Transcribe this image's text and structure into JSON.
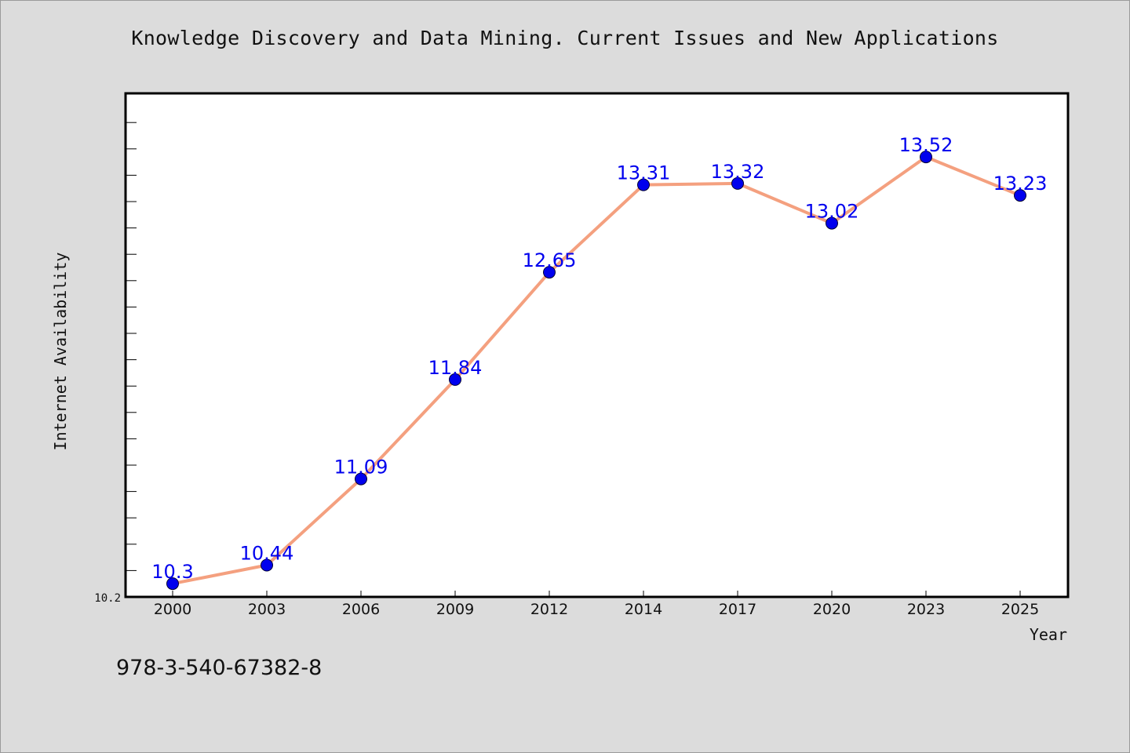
{
  "page": {
    "isbn": "978-3-540-67382-8"
  },
  "chart_data": {
    "type": "line",
    "title": "Knowledge Discovery and Data Mining. Current Issues and New Applications",
    "xlabel": "Year",
    "ylabel": "Internet Availability",
    "categories": [
      "2000",
      "2003",
      "2006",
      "2009",
      "2012",
      "2014",
      "2017",
      "2020",
      "2023",
      "2025"
    ],
    "series": [
      {
        "values": [
          10.3,
          10.44,
          11.09,
          11.84,
          12.65,
          13.31,
          13.32,
          13.02,
          13.52,
          13.23
        ],
        "line_color": "#f4a07f",
        "marker_color": "#0000ee",
        "label_color": "#0000ee"
      }
    ],
    "y_tick_labels": [
      "10.2"
    ],
    "ylim": [
      10.2,
      14.0
    ],
    "grid": false,
    "legend": "none"
  }
}
